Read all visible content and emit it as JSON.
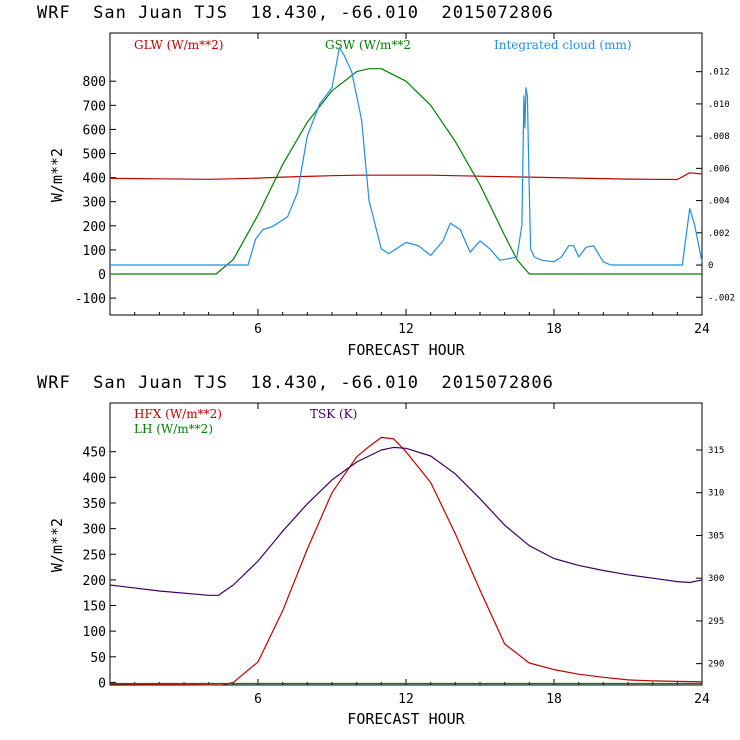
{
  "chart_data": [
    {
      "type": "line",
      "title": "WRF  San Juan TJS  18.430, -66.010  2015072806",
      "xlabel": "FORECAST HOUR",
      "ylabel": "W/m**2",
      "xlim": [
        0,
        24
      ],
      "ylim": [
        -170,
        1000
      ],
      "y2lim": [
        -0.0031,
        0.0144
      ],
      "x_ticks": [
        6,
        12,
        18,
        24
      ],
      "y_ticks": [
        -100,
        0,
        100,
        200,
        300,
        400,
        500,
        600,
        700,
        800
      ],
      "y2_ticks": [
        -0.002,
        0,
        0.002,
        0.004,
        0.006,
        0.008,
        0.01,
        0.012
      ],
      "y2_tick_labels": [
        "-.002",
        "0",
        ".002",
        ".004",
        ".006",
        ".008",
        ".010",
        ".012"
      ],
      "series": [
        {
          "name": "GLW (W/m**2)",
          "color": "#c00000",
          "axis": "left",
          "x": [
            0,
            2,
            4,
            5,
            6,
            7,
            8,
            9,
            10,
            11,
            12,
            13,
            14,
            15,
            16,
            17,
            18,
            19,
            20,
            21,
            22,
            23,
            23.5,
            24
          ],
          "y": [
            397,
            395,
            393,
            395,
            398,
            402,
            405,
            408,
            410,
            410,
            410,
            410,
            408,
            406,
            404,
            402,
            400,
            398,
            396,
            394,
            393,
            392,
            420,
            415
          ]
        },
        {
          "name": "GSW (W/m**2",
          "color": "#008000",
          "axis": "left",
          "x": [
            0,
            4.3,
            5,
            6,
            7,
            8,
            9,
            10,
            10.5,
            11,
            12,
            13,
            14,
            15,
            16,
            16.5,
            17,
            24
          ],
          "y": [
            0,
            0,
            60,
            245,
            455,
            630,
            760,
            840,
            852,
            852,
            800,
            700,
            550,
            370,
            160,
            60,
            0,
            0
          ]
        },
        {
          "name": "Integrated cloud (mm)",
          "color": "#1f8fe0",
          "axis": "right",
          "x": [
            0,
            5.6,
            5.9,
            6.2,
            6.6,
            7.2,
            7.6,
            8.0,
            8.5,
            9.0,
            9.3,
            9.5,
            9.8,
            10.2,
            10.5,
            11.0,
            11.3,
            11.6,
            12.0,
            12.5,
            13.0,
            13.5,
            13.8,
            14.2,
            14.6,
            15.0,
            15.4,
            15.8,
            16.2,
            16.5,
            16.7,
            16.78,
            16.82,
            16.86,
            16.92,
            16.98,
            17.05,
            17.2,
            17.5,
            18.0,
            18.3,
            18.6,
            18.8,
            19.0,
            19.3,
            19.6,
            20.0,
            20.3,
            23.2,
            23.5,
            23.7,
            24.0
          ],
          "y": [
            0,
            0,
            0.0016,
            0.0022,
            0.0024,
            0.003,
            0.0045,
            0.008,
            0.01,
            0.011,
            0.0135,
            0.013,
            0.012,
            0.009,
            0.004,
            0.001,
            0.0007,
            0.001,
            0.0014,
            0.0012,
            0.0006,
            0.0015,
            0.0026,
            0.0022,
            0.0008,
            0.0015,
            0.001,
            0.0003,
            0.0004,
            0.0005,
            0.0025,
            0.0105,
            0.0085,
            0.011,
            0.0105,
            0.006,
            0.001,
            0.0005,
            0.0003,
            0.0002,
            0.0005,
            0.0012,
            0.0012,
            0.0005,
            0.0011,
            0.0012,
            0.0002,
            0,
            0,
            0.0035,
            0.0025,
            0.0002
          ]
        }
      ],
      "legend": "top"
    },
    {
      "type": "line",
      "title": "WRF  San Juan TJS  18.430, -66.010  2015072806",
      "xlabel": "FORECAST HOUR",
      "ylabel": "W/m**2",
      "xlim": [
        0,
        24
      ],
      "ylim": [
        -5,
        545
      ],
      "y2lim": [
        287.5,
        320.5
      ],
      "x_ticks": [
        6,
        12,
        18,
        24
      ],
      "y_ticks": [
        0,
        50,
        100,
        150,
        200,
        250,
        300,
        350,
        400,
        450
      ],
      "y2_ticks": [
        290,
        295,
        300,
        305,
        310,
        315
      ],
      "series": [
        {
          "name": "HFX (W/m**2)",
          "color": "#c00000",
          "axis": "left",
          "x": [
            0,
            3,
            4.5,
            5,
            6,
            7,
            8,
            9,
            10,
            10.5,
            11,
            11.5,
            12,
            13,
            14,
            15,
            16,
            17,
            18,
            19,
            20,
            21,
            22,
            23,
            24
          ],
          "y": [
            -3,
            -4,
            -5,
            0,
            40,
            140,
            260,
            370,
            440,
            460,
            478,
            475,
            450,
            390,
            290,
            180,
            75,
            38,
            25,
            16,
            10,
            5,
            3,
            2,
            1
          ]
        },
        {
          "name": "LH (W/m**2)",
          "color": "#008000",
          "axis": "left",
          "x": [
            0,
            24
          ],
          "y": [
            -2,
            -2
          ]
        },
        {
          "name": "TSK (K)",
          "color": "#400060",
          "axis": "right",
          "x": [
            0,
            2,
            4,
            4.4,
            5,
            6,
            7,
            8,
            9,
            10,
            11,
            11.5,
            12,
            13,
            14,
            15,
            16,
            17,
            18,
            19,
            20,
            21,
            22,
            23,
            23.5,
            24
          ],
          "y": [
            299.2,
            298.5,
            298.0,
            298.0,
            299.2,
            302.0,
            305.5,
            308.7,
            311.5,
            313.6,
            315.0,
            315.3,
            315.2,
            314.3,
            312.2,
            309.3,
            306.2,
            303.8,
            302.3,
            301.5,
            300.9,
            300.4,
            300.0,
            299.6,
            299.5,
            299.8
          ]
        }
      ],
      "legend": "top-left"
    }
  ]
}
